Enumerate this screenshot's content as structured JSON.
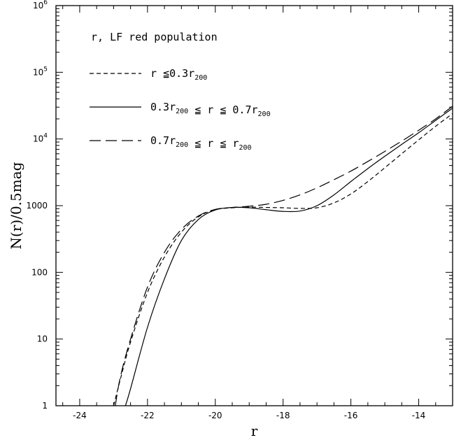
{
  "chart_data": {
    "type": "line",
    "xlabel": "r",
    "ylabel": "N(r)/0.5mag",
    "xlim": [
      -24.7,
      -13
    ],
    "ylim": [
      1,
      1000000
    ],
    "yscale": "log",
    "x_ticks": [
      -24,
      -22,
      -20,
      -18,
      -16,
      -14
    ],
    "x_tick_labels": [
      "-24",
      "-22",
      "-20",
      "-18",
      "-16",
      "-14"
    ],
    "y_ticks": [
      1,
      10,
      100,
      1000,
      10000,
      100000,
      1000000
    ],
    "y_tick_labels": [
      {
        "base": "1",
        "exp": ""
      },
      {
        "base": "10",
        "exp": ""
      },
      {
        "base": "100",
        "exp": ""
      },
      {
        "base": "1000",
        "exp": ""
      },
      {
        "base": "10",
        "exp": "4"
      },
      {
        "base": "10",
        "exp": "5"
      },
      {
        "base": "10",
        "exp": "6"
      }
    ],
    "legend_title": "r, LF red population",
    "legend_position": "top-left",
    "series": [
      {
        "name": "r ≦0.3r200",
        "label_parts": [
          {
            "t": "r ≦0.3r"
          },
          {
            "t": "200",
            "sub": true
          }
        ],
        "dash": "short-dash",
        "x": [
          -23.0,
          -22.8,
          -22.5,
          -22.0,
          -21.5,
          -21.0,
          -20.5,
          -20.0,
          -19.5,
          -19.0,
          -18.5,
          -18.0,
          -17.5,
          -17.0,
          -16.5,
          -16.0,
          -15.5,
          -15.0,
          -14.5,
          -14.0,
          -13.5,
          -13.0
        ],
        "y": [
          1.0,
          2.5,
          9,
          50,
          170,
          400,
          680,
          870,
          930,
          950,
          940,
          930,
          910,
          930,
          1100,
          1500,
          2300,
          3700,
          6000,
          9700,
          15500,
          24000
        ]
      },
      {
        "name": "0.3r200 ≦ r ≦ 0.7r200",
        "label_parts": [
          {
            "t": "0.3r"
          },
          {
            "t": "200",
            "sub": true
          },
          {
            "t": " ≦ r ≦ 0.7r"
          },
          {
            "t": "200",
            "sub": true
          }
        ],
        "dash": "solid",
        "x": [
          -22.65,
          -22.5,
          -22.0,
          -21.5,
          -21.0,
          -20.5,
          -20.0,
          -19.5,
          -19.0,
          -18.5,
          -18.0,
          -17.5,
          -17.0,
          -16.5,
          -16.0,
          -15.5,
          -15.0,
          -14.5,
          -14.0,
          -13.5,
          -13.0
        ],
        "y": [
          1.0,
          1.8,
          15,
          80,
          300,
          620,
          860,
          940,
          930,
          870,
          820,
          830,
          1000,
          1450,
          2300,
          3600,
          5500,
          8300,
          12400,
          19000,
          29000
        ]
      },
      {
        "name": "0.7r200 ≦ r ≦ r200",
        "label_parts": [
          {
            "t": "0.7r"
          },
          {
            "t": "200",
            "sub": true
          },
          {
            "t": " ≦ r ≦ r"
          },
          {
            "t": "200",
            "sub": true
          }
        ],
        "dash": "long-dash",
        "x": [
          -22.95,
          -22.8,
          -22.5,
          -22.0,
          -21.5,
          -21.0,
          -20.5,
          -20.0,
          -19.5,
          -19.0,
          -18.5,
          -18.0,
          -17.5,
          -17.0,
          -16.5,
          -16.0,
          -15.5,
          -15.0,
          -14.5,
          -14.0,
          -13.5,
          -13.0
        ],
        "y": [
          1.0,
          2.7,
          10,
          60,
          200,
          440,
          700,
          880,
          940,
          980,
          1050,
          1200,
          1450,
          1850,
          2450,
          3300,
          4600,
          6500,
          9300,
          13500,
          20000,
          31000
        ]
      }
    ]
  }
}
